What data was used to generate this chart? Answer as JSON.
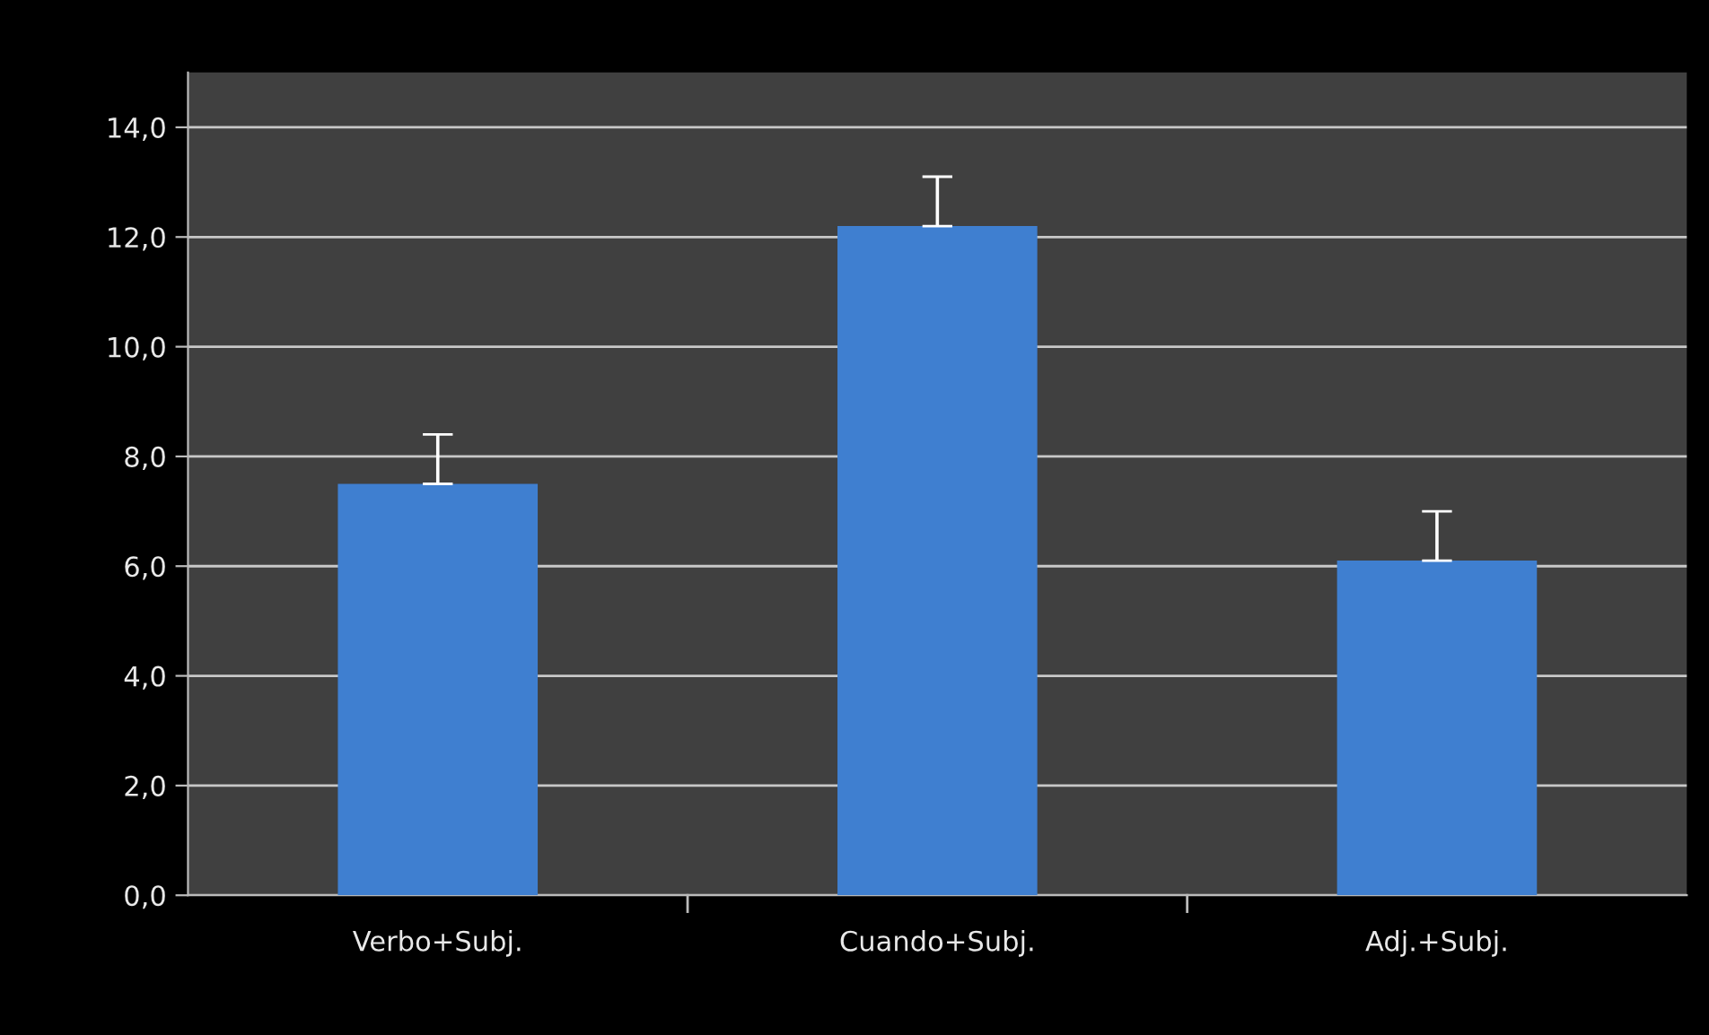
{
  "chart_data": {
    "type": "bar",
    "categories": [
      "Verbo+Subj.",
      "Cuando+Subj.",
      "Adj.+Subj."
    ],
    "series": [
      {
        "color": "#3f7fd0",
        "values": [
          7.5,
          12.2,
          6.1
        ],
        "errors": [
          0.9,
          0.9,
          0.9
        ]
      }
    ],
    "ylim": [
      0,
      15
    ],
    "yticks": [
      {
        "value": 0,
        "label": "0,0"
      },
      {
        "value": 2,
        "label": "2,0"
      },
      {
        "value": 4,
        "label": "4,0"
      },
      {
        "value": 6,
        "label": "6,0"
      },
      {
        "value": 8,
        "label": "8,0"
      },
      {
        "value": 10,
        "label": "10,0"
      },
      {
        "value": 12,
        "label": "12,0"
      },
      {
        "value": 14,
        "label": "14,0"
      }
    ],
    "grid": "y",
    "legend": false
  }
}
